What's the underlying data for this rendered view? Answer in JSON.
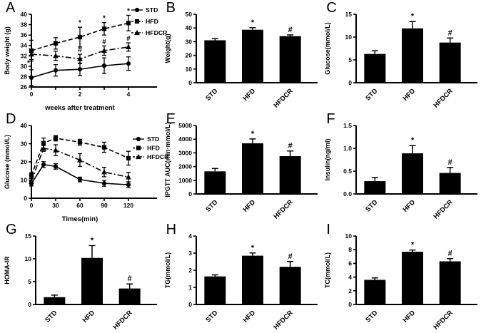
{
  "figure": {
    "background": "#ffffff",
    "ink": "#000000",
    "groups": [
      "STD",
      "HFD",
      "HFDCR"
    ],
    "significance_symbols": [
      "*",
      "#"
    ]
  },
  "chart_data": [
    {
      "panel": "A",
      "type": "line",
      "ylabel": "Body weight (g)",
      "xlabel": "weeks after treatment",
      "ylim": [
        26,
        40
      ],
      "yticks": [
        26,
        28,
        30,
        32,
        34,
        36,
        38,
        40
      ],
      "xlim": [
        0,
        4
      ],
      "xticks": [
        0,
        1,
        2,
        3,
        4
      ],
      "xtick_labels": [
        "0",
        "",
        "2",
        "",
        "4"
      ],
      "x": [
        0,
        1,
        2,
        3,
        4
      ],
      "legend": true,
      "series": [
        {
          "name": "STD",
          "marker": "circle",
          "dash": "solid",
          "values": [
            27.8,
            29.2,
            29.4,
            30.1,
            30.5
          ],
          "errors": [
            1.5,
            1.1,
            1.2,
            1.5,
            1.3
          ],
          "sig": [
            "",
            "",
            "",
            "",
            ""
          ]
        },
        {
          "name": "HFD",
          "marker": "square",
          "dash": "dashed",
          "values": [
            33.0,
            34.4,
            35.6,
            37.2,
            38.3
          ],
          "errors": [
            2.0,
            1.1,
            1.9,
            1.2,
            1.5
          ],
          "sig": [
            "",
            "",
            "*",
            "*",
            "*"
          ]
        },
        {
          "name": "HFDCR",
          "marker": "triangle",
          "dash": "dashdot",
          "values": [
            32.3,
            32.0,
            31.4,
            33.0,
            33.7
          ],
          "errors": [
            1.0,
            0.9,
            0.9,
            0.9,
            0.8
          ],
          "sig": [
            "",
            "",
            "#",
            "#",
            "#"
          ]
        }
      ],
      "annotations": [
        {
          "x": -0.12,
          "y": 30.2,
          "text": "*"
        }
      ]
    },
    {
      "panel": "B",
      "type": "bar",
      "ylabel": "Weight(g)",
      "ylim": [
        0,
        50
      ],
      "yticks": [
        0,
        10,
        20,
        30,
        40,
        50
      ],
      "categories": [
        "STD",
        "HFD",
        "HFDCR"
      ],
      "values": [
        31.0,
        38.7,
        34.0
      ],
      "errors": [
        1.2,
        1.5,
        0.9
      ],
      "sig": [
        "",
        "*",
        "#"
      ]
    },
    {
      "panel": "C",
      "type": "bar",
      "ylabel": "Glucose(mmol/L)",
      "ylim": [
        0,
        15
      ],
      "yticks": [
        0,
        5,
        10,
        15
      ],
      "categories": [
        "STD",
        "HFD",
        "HFDCR"
      ],
      "values": [
        6.3,
        11.9,
        8.8
      ],
      "errors": [
        0.7,
        1.5,
        1.0
      ],
      "sig": [
        "",
        "*",
        "#"
      ]
    },
    {
      "panel": "D",
      "type": "line",
      "ylabel": "Glucose (mmol/L)",
      "xlabel": "Times(min)",
      "ylim": [
        0,
        40
      ],
      "yticks": [
        0,
        10,
        20,
        30,
        40
      ],
      "xlim": [
        0,
        120
      ],
      "xticks": [
        0,
        30,
        60,
        90,
        120
      ],
      "xtick_labels": [
        "0",
        "30",
        "60",
        "90",
        "120"
      ],
      "x": [
        0,
        15,
        30,
        60,
        90,
        120
      ],
      "legend": true,
      "series": [
        {
          "name": "STD",
          "marker": "circle",
          "dash": "solid",
          "values": [
            8.0,
            18.5,
            17.5,
            10.3,
            8.2,
            7.4
          ],
          "errors": [
            1.3,
            1.6,
            1.5,
            1.3,
            1.6,
            1.6
          ],
          "sig": [
            "",
            "",
            "",
            "",
            "",
            ""
          ]
        },
        {
          "name": "HFD",
          "marker": "square",
          "dash": "dashed",
          "values": [
            12.5,
            30.3,
            33.0,
            30.8,
            28.0,
            22.0
          ],
          "errors": [
            1.6,
            2.8,
            1.5,
            1.6,
            2.8,
            3.8
          ],
          "sig": [
            "",
            "",
            "",
            "",
            "",
            ""
          ]
        },
        {
          "name": "HFDCR",
          "marker": "triangle",
          "dash": "dashdot",
          "values": [
            9.3,
            27.4,
            26.4,
            21.0,
            14.4,
            11.6
          ],
          "errors": [
            1.5,
            1.6,
            3.0,
            3.5,
            2.6,
            2.6
          ],
          "sig": [
            "",
            "",
            "",
            "",
            "",
            ""
          ]
        }
      ],
      "annotations": []
    },
    {
      "panel": "E",
      "type": "bar",
      "ylabel": "IPGTT AUC(min·mmol/L)",
      "ylim": [
        0,
        5000
      ],
      "yticks": [
        0,
        1000,
        2000,
        3000,
        4000,
        5000
      ],
      "categories": [
        "STD",
        "HFD",
        "HFDCR"
      ],
      "values": [
        1650,
        3700,
        2760
      ],
      "errors": [
        210,
        320,
        380
      ],
      "sig": [
        "",
        "*",
        "#"
      ]
    },
    {
      "panel": "F",
      "type": "bar",
      "ylabel": "Insulin(ng/ml)",
      "ylim": [
        0,
        1.5
      ],
      "yticks": [
        0,
        0.5,
        1,
        1.5
      ],
      "ytick_labels": [
        "0.0",
        "0.5",
        "1.0",
        "1.5"
      ],
      "categories": [
        "STD",
        "HFD",
        "HFDCR"
      ],
      "values": [
        0.28,
        0.89,
        0.46
      ],
      "errors": [
        0.08,
        0.17,
        0.12
      ],
      "sig": [
        "",
        "*",
        "#"
      ]
    },
    {
      "panel": "G",
      "type": "bar",
      "ylabel": "HOMA-IR",
      "ylim": [
        0,
        15
      ],
      "yticks": [
        0,
        5,
        10,
        15
      ],
      "categories": [
        "STD",
        "HFD",
        "HFDCR"
      ],
      "values": [
        1.6,
        10.2,
        3.5
      ],
      "errors": [
        0.45,
        2.7,
        1.0
      ],
      "sig": [
        "",
        "*",
        "#"
      ]
    },
    {
      "panel": "H",
      "type": "bar",
      "ylabel": "TG(mmol/L)",
      "ylim": [
        0,
        4
      ],
      "yticks": [
        0,
        1,
        2,
        3,
        4
      ],
      "categories": [
        "STD",
        "HFD",
        "HFDCR"
      ],
      "values": [
        1.64,
        2.85,
        2.2
      ],
      "errors": [
        0.09,
        0.16,
        0.31
      ],
      "sig": [
        "",
        "*",
        "#"
      ]
    },
    {
      "panel": "I",
      "type": "bar",
      "ylabel": "TC(mmol/L)",
      "ylim": [
        0,
        10
      ],
      "yticks": [
        0,
        2,
        4,
        6,
        8,
        10
      ],
      "categories": [
        "STD",
        "HFD",
        "HFDCR"
      ],
      "values": [
        3.6,
        7.7,
        6.3
      ],
      "errors": [
        0.28,
        0.25,
        0.4
      ],
      "sig": [
        "",
        "*",
        "#"
      ]
    }
  ]
}
